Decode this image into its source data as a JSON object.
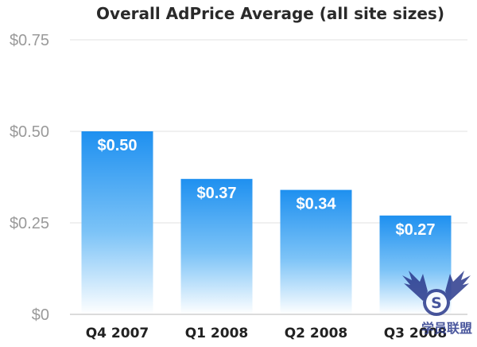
{
  "chart_data": {
    "type": "bar",
    "title": "Overall AdPrice Average (all site sizes)",
    "categories": [
      "Q4 2007",
      "Q1 2008",
      "Q2 2008",
      "Q3 2008"
    ],
    "values": [
      0.5,
      0.37,
      0.34,
      0.27
    ],
    "data_labels": [
      "$0.50",
      "$0.37",
      "$0.34",
      "$0.27"
    ],
    "yticks": [
      0,
      0.25,
      0.5,
      0.75
    ],
    "ytick_labels": [
      "$0",
      "$0.25",
      "$0.50",
      "$0.75"
    ],
    "ylim": [
      0,
      0.75
    ],
    "grid": true,
    "bar_color_top": "#1e90f0",
    "bar_color_bottom": "#ffffff"
  },
  "watermark": {
    "badge": "S",
    "text": "学员联盟"
  }
}
